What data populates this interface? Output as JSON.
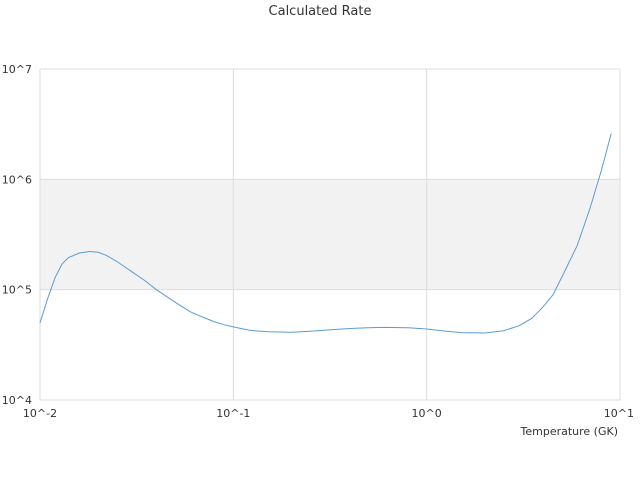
{
  "chart_data": {
    "type": "line",
    "title": "Calculated Rate",
    "xlabel": "Temperature (GK)",
    "ylabel": "",
    "x_scale": "log",
    "y_scale": "log",
    "xlim": [
      0.01,
      10
    ],
    "ylim": [
      10000,
      10000000
    ],
    "x_ticks": [
      {
        "value": 0.01,
        "label": "10^-2"
      },
      {
        "value": 0.1,
        "label": "10^-1"
      },
      {
        "value": 1,
        "label": "10^0"
      },
      {
        "value": 10,
        "label": "10^1"
      }
    ],
    "y_ticks": [
      {
        "value": 10000,
        "label": "10^4"
      },
      {
        "value": 100000,
        "label": "10^5"
      },
      {
        "value": 1000000,
        "label": "10^6"
      },
      {
        "value": 10000000,
        "label": "10^7"
      }
    ],
    "shaded_band": {
      "from": 100000,
      "to": 1000000,
      "color": "#f2f2f2"
    },
    "line_color": "#5b9bd5",
    "series": [
      {
        "x": [
          0.01,
          0.011,
          0.012,
          0.013,
          0.014,
          0.016,
          0.018,
          0.02,
          0.022,
          0.025,
          0.03,
          0.035,
          0.04,
          0.05,
          0.06,
          0.07,
          0.08,
          0.09,
          0.1,
          0.12,
          0.15,
          0.2,
          0.25,
          0.3,
          0.4,
          0.5,
          0.6,
          0.8,
          1.0,
          1.2,
          1.5,
          2.0,
          2.5,
          3.0,
          3.5,
          4.0,
          4.5,
          5.0,
          6.0,
          7.0,
          8.0,
          9.0
        ],
        "y": [
          50000,
          85000,
          130000,
          170000,
          195000,
          215000,
          222000,
          218000,
          205000,
          180000,
          145000,
          120000,
          100000,
          77000,
          63000,
          56000,
          51000,
          48000,
          46000,
          43000,
          41500,
          41200,
          42000,
          43000,
          44500,
          45200,
          45500,
          45200,
          44000,
          42500,
          40800,
          40500,
          42500,
          47000,
          55000,
          70000,
          90000,
          130000,
          250000,
          550000,
          1200000,
          2600000
        ]
      }
    ]
  }
}
